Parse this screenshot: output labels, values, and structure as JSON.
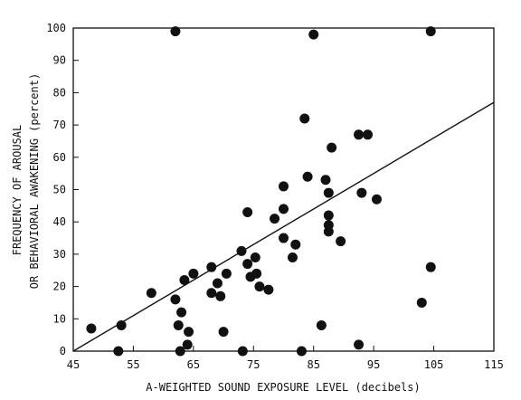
{
  "chart_data": {
    "type": "scatter",
    "title": "",
    "xlabel": "A-WEIGHTED SOUND EXPOSURE LEVEL (decibels)",
    "ylabel_line1": "FREQUENCY OF AROUSAL",
    "ylabel_line2": "OR BEHAVIORAL AWAKENING (percent)",
    "xlim": [
      45,
      115
    ],
    "ylim": [
      0,
      100
    ],
    "xticks": [
      45,
      55,
      65,
      75,
      85,
      95,
      105,
      115
    ],
    "yticks": [
      0,
      10,
      20,
      30,
      40,
      50,
      60,
      70,
      80,
      90,
      100
    ],
    "grid": false,
    "points": [
      {
        "x": 48,
        "y": 7
      },
      {
        "x": 52.5,
        "y": 0
      },
      {
        "x": 53,
        "y": 8
      },
      {
        "x": 58,
        "y": 18
      },
      {
        "x": 62,
        "y": 99
      },
      {
        "x": 62,
        "y": 16
      },
      {
        "x": 62.5,
        "y": 8
      },
      {
        "x": 62.8,
        "y": 0
      },
      {
        "x": 63,
        "y": 12
      },
      {
        "x": 63.5,
        "y": 22
      },
      {
        "x": 64,
        "y": 2
      },
      {
        "x": 64.2,
        "y": 6
      },
      {
        "x": 65,
        "y": 24
      },
      {
        "x": 68,
        "y": 26
      },
      {
        "x": 68,
        "y": 18
      },
      {
        "x": 69,
        "y": 21
      },
      {
        "x": 69.5,
        "y": 17
      },
      {
        "x": 70,
        "y": 6
      },
      {
        "x": 70.5,
        "y": 24
      },
      {
        "x": 73,
        "y": 31
      },
      {
        "x": 73.2,
        "y": 0
      },
      {
        "x": 74,
        "y": 43
      },
      {
        "x": 74,
        "y": 27
      },
      {
        "x": 74.5,
        "y": 23
      },
      {
        "x": 75.3,
        "y": 29
      },
      {
        "x": 75.5,
        "y": 24
      },
      {
        "x": 76,
        "y": 20
      },
      {
        "x": 77.5,
        "y": 19
      },
      {
        "x": 78.5,
        "y": 41
      },
      {
        "x": 80,
        "y": 51
      },
      {
        "x": 80,
        "y": 44
      },
      {
        "x": 80,
        "y": 35
      },
      {
        "x": 81.5,
        "y": 29
      },
      {
        "x": 82,
        "y": 33
      },
      {
        "x": 83,
        "y": 0
      },
      {
        "x": 83.5,
        "y": 72
      },
      {
        "x": 84,
        "y": 54
      },
      {
        "x": 85,
        "y": 98
      },
      {
        "x": 86.3,
        "y": 8
      },
      {
        "x": 87,
        "y": 53
      },
      {
        "x": 87.5,
        "y": 49
      },
      {
        "x": 87.5,
        "y": 42
      },
      {
        "x": 87.5,
        "y": 39
      },
      {
        "x": 87.5,
        "y": 37
      },
      {
        "x": 88,
        "y": 63
      },
      {
        "x": 89.5,
        "y": 34
      },
      {
        "x": 92.5,
        "y": 67
      },
      {
        "x": 92.5,
        "y": 2
      },
      {
        "x": 93,
        "y": 49
      },
      {
        "x": 94,
        "y": 67
      },
      {
        "x": 95.5,
        "y": 47
      },
      {
        "x": 103,
        "y": 15
      },
      {
        "x": 104.5,
        "y": 99
      },
      {
        "x": 104.5,
        "y": 26
      }
    ],
    "fit_line": {
      "x1": 45,
      "y1": 0,
      "x2": 115,
      "y2": 77
    }
  }
}
